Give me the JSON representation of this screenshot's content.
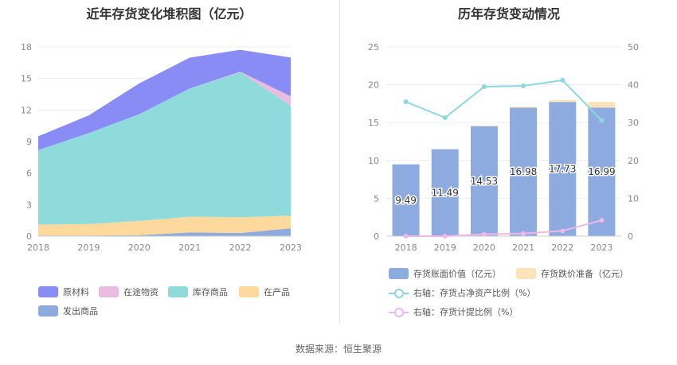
{
  "source": "数据来源：恒生聚源",
  "colors": {
    "raw": "#8a8cf5",
    "transit": "#e8bde0",
    "finished": "#8fdbdc",
    "wip": "#fdd99e",
    "shipped": "#8fabdd",
    "bar_main": "#8dabde",
    "bar_top": "#fde3ba",
    "line_ratio": "#8ad8dd",
    "line_provision": "#f0b8e6"
  },
  "chart_data": [
    {
      "type": "area",
      "title": "近年存货变化堆积图（亿元）",
      "x": [
        "2018",
        "2019",
        "2020",
        "2021",
        "2022",
        "2023"
      ],
      "ylim": [
        0,
        18
      ],
      "yticks": [
        "0",
        "3",
        "6",
        "9",
        "12",
        "15",
        "18"
      ],
      "series": [
        {
          "name": "发出商品",
          "key": "shipped",
          "values": [
            0.05,
            0.05,
            0.1,
            0.35,
            0.3,
            0.75
          ]
        },
        {
          "name": "在产品",
          "key": "wip",
          "values": [
            1.05,
            1.1,
            1.35,
            1.5,
            1.5,
            1.2
          ]
        },
        {
          "name": "库存商品",
          "key": "finished",
          "values": [
            7.1,
            8.65,
            10.15,
            12.2,
            13.8,
            10.45
          ]
        },
        {
          "name": "在途物资",
          "key": "transit",
          "values": [
            0,
            0,
            0,
            0,
            0.05,
            0.9
          ]
        },
        {
          "name": "原材料",
          "key": "raw",
          "values": [
            1.3,
            1.69,
            2.93,
            2.93,
            2.08,
            3.69
          ]
        }
      ],
      "legend": [
        {
          "name": "原材料",
          "key": "raw"
        },
        {
          "name": "在途物资",
          "key": "transit"
        },
        {
          "name": "库存商品",
          "key": "finished"
        },
        {
          "name": "在产品",
          "key": "wip"
        },
        {
          "name": "发出商品",
          "key": "shipped"
        }
      ]
    },
    {
      "type": "bar",
      "title": "历年存货变动情况",
      "categories": [
        "2018",
        "2019",
        "2020",
        "2021",
        "2022",
        "2023"
      ],
      "ylim": [
        0,
        25
      ],
      "yticks": [
        "0",
        "5",
        "10",
        "15",
        "20",
        "25"
      ],
      "y2lim": [
        0,
        50
      ],
      "y2ticks": [
        "0",
        "10",
        "20",
        "30",
        "40",
        "50"
      ],
      "series": [
        {
          "name": "存货账面价值（亿元）",
          "key": "bar_main",
          "values": [
            9.49,
            11.49,
            14.53,
            16.98,
            17.73,
            16.99
          ],
          "labels": [
            "9.49",
            "11.49",
            "14.53",
            "16.98",
            "17.73",
            "16.99"
          ]
        },
        {
          "name": "存货跌价准备（亿元）",
          "key": "bar_top",
          "values": [
            0.0,
            0.0,
            0.08,
            0.12,
            0.25,
            0.75
          ]
        },
        {
          "name": "右轴：存货占净资产比例（%）",
          "key": "line_ratio",
          "axis": "right",
          "values": [
            35.5,
            31.3,
            39.5,
            39.7,
            41.2,
            30.6
          ]
        },
        {
          "name": "右轴：存货计提比例（%）",
          "key": "line_provision",
          "axis": "right",
          "values": [
            0.0,
            0.0,
            0.5,
            0.7,
            1.4,
            4.2
          ]
        }
      ]
    }
  ]
}
